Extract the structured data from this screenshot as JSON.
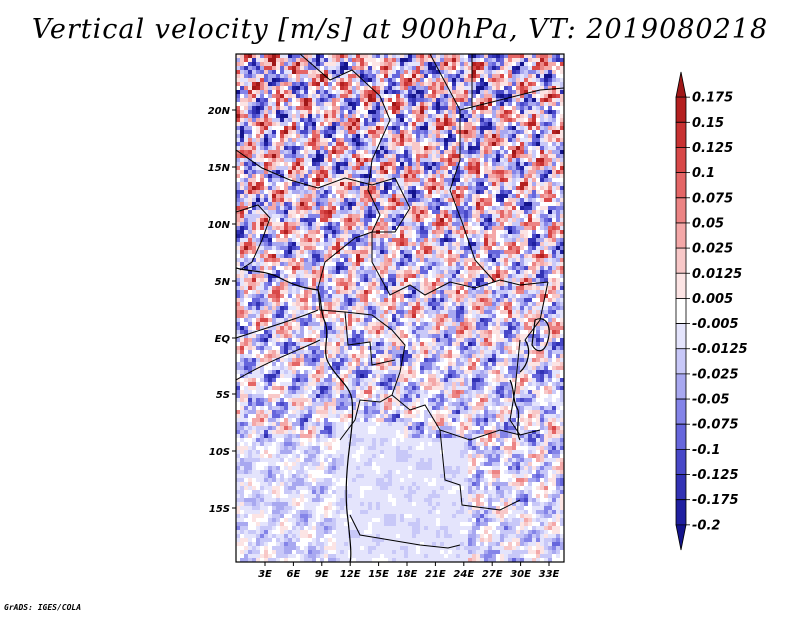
{
  "title": "Vertical velocity [m/s] at 900hPa, VT: 2019080218",
  "credit": "GrADS: IGES/COLA",
  "map": {
    "lat_ticks": [
      "20N",
      "15N",
      "10N",
      "5N",
      "EQ",
      "5S",
      "10S",
      "15S"
    ],
    "lon_ticks": [
      "3E",
      "6E",
      "9E",
      "12E",
      "15E",
      "18E",
      "21E",
      "24E",
      "27E",
      "30E",
      "33E"
    ]
  },
  "colorbar": {
    "levels": [
      "0.175",
      "0.15",
      "0.125",
      "0.1",
      "0.075",
      "0.05",
      "0.025",
      "0.0125",
      "0.005",
      "-0.005",
      "-0.0125",
      "-0.025",
      "-0.05",
      "-0.075",
      "-0.1",
      "-0.125",
      "-0.175",
      "-0.2"
    ],
    "colors": [
      "#a01818",
      "#b42020",
      "#c83232",
      "#d84848",
      "#e46666",
      "#ec8484",
      "#f4a8a8",
      "#f8c8c8",
      "#fce4e4",
      "#ffffff",
      "#e4e4fc",
      "#c8c8f8",
      "#a8a8f0",
      "#8484e8",
      "#6666dc",
      "#4848c8",
      "#3232b4",
      "#2020a0",
      "#14148c"
    ]
  }
}
